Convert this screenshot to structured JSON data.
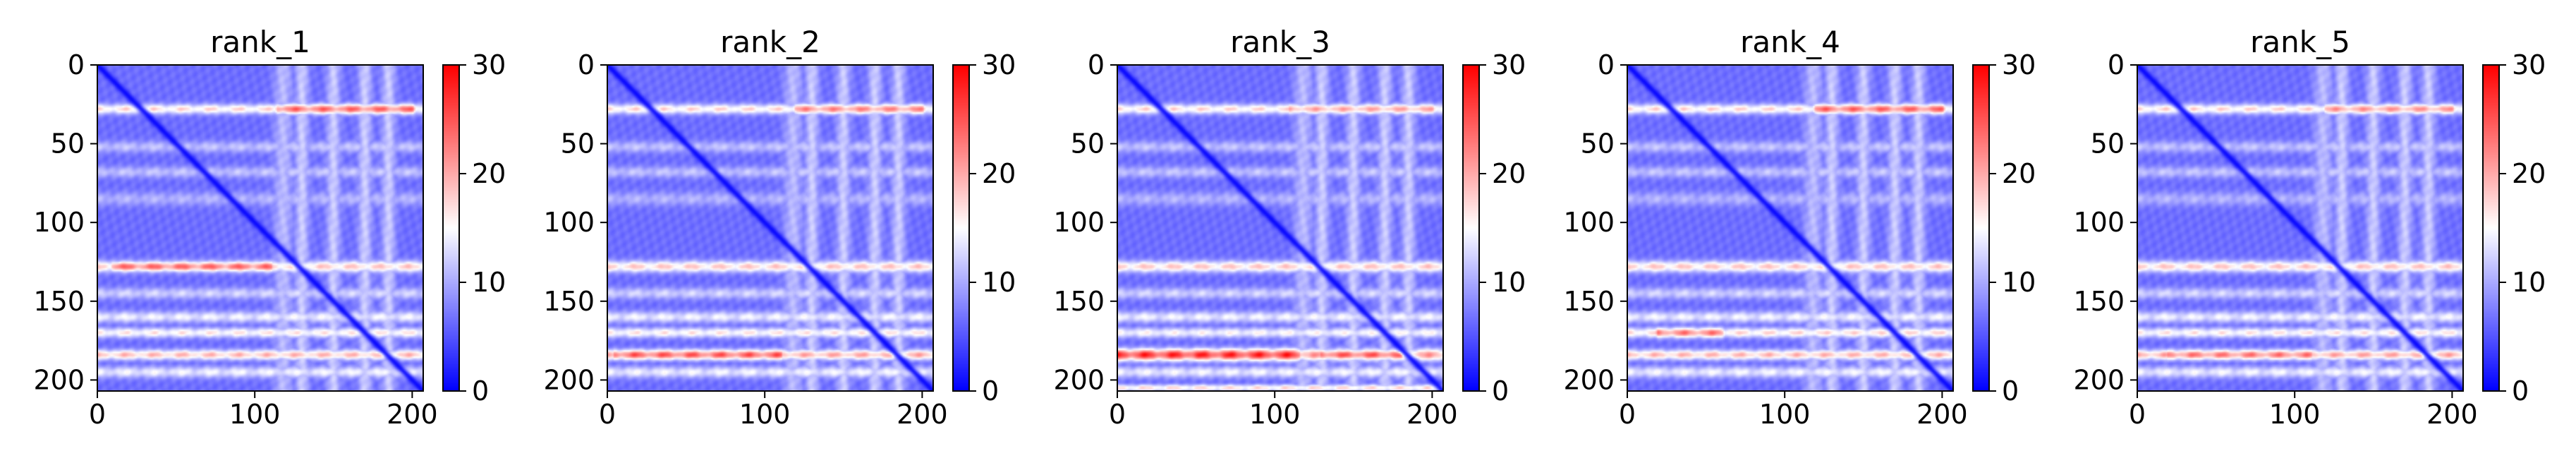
{
  "figure": {
    "colormap": {
      "low": "#0000ff",
      "mid": "#ffffff",
      "high": "#ff0000"
    }
  },
  "chart_data": [
    {
      "type": "heatmap",
      "title": "rank_1",
      "xlim": [
        0,
        207
      ],
      "ylim": [
        207,
        0
      ],
      "x_ticks": [
        0,
        100,
        200
      ],
      "y_ticks": [
        0,
        50,
        100,
        150,
        200
      ],
      "colorbar": {
        "vmin": 0,
        "vmax": 30,
        "ticks": [
          0,
          10,
          20,
          30
        ]
      },
      "base_value": 6.5,
      "diagonal_value": 0,
      "row_bands": [
        {
          "y": 28,
          "value": 18,
          "x_start": 0,
          "x_end": 207,
          "width": 2.2
        },
        {
          "y": 28,
          "value": 25,
          "x_start": 115,
          "x_end": 200,
          "width": 2.2
        },
        {
          "y": 52,
          "value": 12,
          "x_start": 0,
          "x_end": 207,
          "width": 2.5
        },
        {
          "y": 68,
          "value": 12,
          "x_start": 0,
          "x_end": 207,
          "width": 2.5
        },
        {
          "y": 85,
          "value": 11,
          "x_start": 0,
          "x_end": 207,
          "width": 3
        },
        {
          "y": 128,
          "value": 19,
          "x_start": 0,
          "x_end": 207,
          "width": 2.5
        },
        {
          "y": 128,
          "value": 25,
          "x_start": 10,
          "x_end": 110,
          "width": 2.2
        },
        {
          "y": 145,
          "value": 13,
          "x_start": 0,
          "x_end": 207,
          "width": 2.5
        },
        {
          "y": 160,
          "value": 15,
          "x_start": 0,
          "x_end": 207,
          "width": 2.5
        },
        {
          "y": 170,
          "value": 17,
          "x_start": 0,
          "x_end": 207,
          "width": 2.2
        },
        {
          "y": 184,
          "value": 20,
          "x_start": 0,
          "x_end": 207,
          "width": 2.2
        },
        {
          "y": 195,
          "value": 15,
          "x_start": 0,
          "x_end": 207,
          "width": 2.5
        }
      ],
      "col_bands": [
        {
          "x": 118,
          "value": 11,
          "width": 4
        },
        {
          "x": 130,
          "value": 12,
          "width": 3
        },
        {
          "x": 150,
          "value": 12,
          "width": 3
        },
        {
          "x": 170,
          "value": 12,
          "width": 3
        },
        {
          "x": 185,
          "value": 12,
          "width": 3
        }
      ]
    },
    {
      "type": "heatmap",
      "title": "rank_2",
      "xlim": [
        0,
        207
      ],
      "ylim": [
        207,
        0
      ],
      "x_ticks": [
        0,
        100,
        200
      ],
      "y_ticks": [
        0,
        50,
        100,
        150,
        200
      ],
      "colorbar": {
        "vmin": 0,
        "vmax": 30,
        "ticks": [
          0,
          10,
          20,
          30
        ]
      },
      "base_value": 6.5,
      "diagonal_value": 0,
      "row_bands": [
        {
          "y": 28,
          "value": 18,
          "x_start": 0,
          "x_end": 207,
          "width": 2.2
        },
        {
          "y": 28,
          "value": 23,
          "x_start": 120,
          "x_end": 200,
          "width": 2.2
        },
        {
          "y": 52,
          "value": 12,
          "x_start": 0,
          "x_end": 207,
          "width": 2.5
        },
        {
          "y": 68,
          "value": 12,
          "x_start": 0,
          "x_end": 207,
          "width": 2.5
        },
        {
          "y": 85,
          "value": 11,
          "x_start": 0,
          "x_end": 207,
          "width": 3
        },
        {
          "y": 128,
          "value": 19,
          "x_start": 0,
          "x_end": 207,
          "width": 2.5
        },
        {
          "y": 145,
          "value": 13,
          "x_start": 0,
          "x_end": 207,
          "width": 2.5
        },
        {
          "y": 160,
          "value": 15,
          "x_start": 0,
          "x_end": 207,
          "width": 2.5
        },
        {
          "y": 170,
          "value": 17,
          "x_start": 0,
          "x_end": 207,
          "width": 2.2
        },
        {
          "y": 184,
          "value": 21,
          "x_start": 0,
          "x_end": 207,
          "width": 2.2
        },
        {
          "y": 184,
          "value": 26,
          "x_start": 5,
          "x_end": 110,
          "width": 2.2
        },
        {
          "y": 195,
          "value": 15,
          "x_start": 0,
          "x_end": 207,
          "width": 2.5
        }
      ],
      "col_bands": [
        {
          "x": 118,
          "value": 11,
          "width": 4
        },
        {
          "x": 130,
          "value": 12,
          "width": 3
        },
        {
          "x": 150,
          "value": 12,
          "width": 3
        },
        {
          "x": 170,
          "value": 12,
          "width": 3
        },
        {
          "x": 185,
          "value": 12,
          "width": 3
        }
      ]
    },
    {
      "type": "heatmap",
      "title": "rank_3",
      "xlim": [
        0,
        207
      ],
      "ylim": [
        207,
        0
      ],
      "x_ticks": [
        0,
        100,
        200
      ],
      "y_ticks": [
        0,
        50,
        100,
        150,
        200
      ],
      "colorbar": {
        "vmin": 0,
        "vmax": 30,
        "ticks": [
          0,
          10,
          20,
          30
        ]
      },
      "base_value": 6.5,
      "diagonal_value": 0,
      "row_bands": [
        {
          "y": 28,
          "value": 18,
          "x_start": 0,
          "x_end": 207,
          "width": 2.2
        },
        {
          "y": 28,
          "value": 21,
          "x_start": 110,
          "x_end": 200,
          "width": 2.2
        },
        {
          "y": 52,
          "value": 12,
          "x_start": 0,
          "x_end": 207,
          "width": 2.5
        },
        {
          "y": 68,
          "value": 12,
          "x_start": 0,
          "x_end": 207,
          "width": 2.5
        },
        {
          "y": 85,
          "value": 11,
          "x_start": 0,
          "x_end": 207,
          "width": 3
        },
        {
          "y": 128,
          "value": 19,
          "x_start": 0,
          "x_end": 207,
          "width": 2.5
        },
        {
          "y": 145,
          "value": 13,
          "x_start": 0,
          "x_end": 207,
          "width": 2.5
        },
        {
          "y": 160,
          "value": 15,
          "x_start": 0,
          "x_end": 207,
          "width": 2.5
        },
        {
          "y": 170,
          "value": 16,
          "x_start": 0,
          "x_end": 207,
          "width": 2.2
        },
        {
          "y": 184,
          "value": 22,
          "x_start": 0,
          "x_end": 207,
          "width": 2.6
        },
        {
          "y": 184,
          "value": 29,
          "x_start": 0,
          "x_end": 115,
          "width": 2.6
        },
        {
          "y": 184,
          "value": 26,
          "x_start": 130,
          "x_end": 180,
          "width": 2.2
        },
        {
          "y": 195,
          "value": 15,
          "x_start": 0,
          "x_end": 207,
          "width": 2.5
        },
        {
          "y": 205,
          "value": 18,
          "x_start": 0,
          "x_end": 207,
          "width": 1.5
        }
      ],
      "col_bands": [
        {
          "x": 118,
          "value": 11,
          "width": 4
        },
        {
          "x": 130,
          "value": 12,
          "width": 3
        },
        {
          "x": 150,
          "value": 12,
          "width": 3
        },
        {
          "x": 170,
          "value": 12,
          "width": 3
        },
        {
          "x": 185,
          "value": 12,
          "width": 3
        }
      ]
    },
    {
      "type": "heatmap",
      "title": "rank_4",
      "xlim": [
        0,
        207
      ],
      "ylim": [
        207,
        0
      ],
      "x_ticks": [
        0,
        100,
        200
      ],
      "y_ticks": [
        0,
        50,
        100,
        150,
        200
      ],
      "colorbar": {
        "vmin": 0,
        "vmax": 30,
        "ticks": [
          0,
          10,
          20,
          30
        ]
      },
      "base_value": 6.5,
      "diagonal_value": 0,
      "row_bands": [
        {
          "y": 28,
          "value": 18,
          "x_start": 0,
          "x_end": 207,
          "width": 2.2
        },
        {
          "y": 28,
          "value": 25,
          "x_start": 120,
          "x_end": 200,
          "width": 2.2
        },
        {
          "y": 52,
          "value": 12,
          "x_start": 0,
          "x_end": 207,
          "width": 2.5
        },
        {
          "y": 68,
          "value": 12,
          "x_start": 0,
          "x_end": 207,
          "width": 2.5
        },
        {
          "y": 85,
          "value": 11,
          "x_start": 0,
          "x_end": 207,
          "width": 3
        },
        {
          "y": 128,
          "value": 19,
          "x_start": 0,
          "x_end": 207,
          "width": 2.5
        },
        {
          "y": 145,
          "value": 13,
          "x_start": 0,
          "x_end": 207,
          "width": 2.5
        },
        {
          "y": 160,
          "value": 15,
          "x_start": 0,
          "x_end": 207,
          "width": 2.5
        },
        {
          "y": 170,
          "value": 18,
          "x_start": 0,
          "x_end": 207,
          "width": 2.2
        },
        {
          "y": 170,
          "value": 24,
          "x_start": 20,
          "x_end": 60,
          "width": 2.2
        },
        {
          "y": 184,
          "value": 20,
          "x_start": 0,
          "x_end": 207,
          "width": 2.2
        },
        {
          "y": 195,
          "value": 15,
          "x_start": 0,
          "x_end": 207,
          "width": 2.5
        }
      ],
      "col_bands": [
        {
          "x": 118,
          "value": 11,
          "width": 4
        },
        {
          "x": 130,
          "value": 12,
          "width": 3
        },
        {
          "x": 150,
          "value": 12,
          "width": 3
        },
        {
          "x": 170,
          "value": 12,
          "width": 3
        },
        {
          "x": 185,
          "value": 12,
          "width": 3
        }
      ]
    },
    {
      "type": "heatmap",
      "title": "rank_5",
      "xlim": [
        0,
        207
      ],
      "ylim": [
        207,
        0
      ],
      "x_ticks": [
        0,
        100,
        200
      ],
      "y_ticks": [
        0,
        50,
        100,
        150,
        200
      ],
      "colorbar": {
        "vmin": 0,
        "vmax": 30,
        "ticks": [
          0,
          10,
          20,
          30
        ]
      },
      "base_value": 6.5,
      "diagonal_value": 0,
      "row_bands": [
        {
          "y": 28,
          "value": 18,
          "x_start": 0,
          "x_end": 207,
          "width": 2.2
        },
        {
          "y": 28,
          "value": 22,
          "x_start": 120,
          "x_end": 200,
          "width": 2.2
        },
        {
          "y": 52,
          "value": 12,
          "x_start": 0,
          "x_end": 207,
          "width": 2.5
        },
        {
          "y": 68,
          "value": 12,
          "x_start": 0,
          "x_end": 207,
          "width": 2.5
        },
        {
          "y": 85,
          "value": 11,
          "x_start": 0,
          "x_end": 207,
          "width": 3
        },
        {
          "y": 128,
          "value": 19,
          "x_start": 0,
          "x_end": 207,
          "width": 2.5
        },
        {
          "y": 145,
          "value": 13,
          "x_start": 0,
          "x_end": 207,
          "width": 2.5
        },
        {
          "y": 160,
          "value": 15,
          "x_start": 0,
          "x_end": 207,
          "width": 2.5
        },
        {
          "y": 170,
          "value": 17,
          "x_start": 0,
          "x_end": 207,
          "width": 2.2
        },
        {
          "y": 184,
          "value": 21,
          "x_start": 0,
          "x_end": 207,
          "width": 2.2
        },
        {
          "y": 184,
          "value": 24,
          "x_start": 20,
          "x_end": 110,
          "width": 2.2
        },
        {
          "y": 195,
          "value": 15,
          "x_start": 0,
          "x_end": 207,
          "width": 2.5
        }
      ],
      "col_bands": [
        {
          "x": 118,
          "value": 11,
          "width": 4
        },
        {
          "x": 130,
          "value": 12,
          "width": 3
        },
        {
          "x": 150,
          "value": 12,
          "width": 3
        },
        {
          "x": 170,
          "value": 12,
          "width": 3
        },
        {
          "x": 185,
          "value": 12,
          "width": 3
        }
      ]
    }
  ]
}
